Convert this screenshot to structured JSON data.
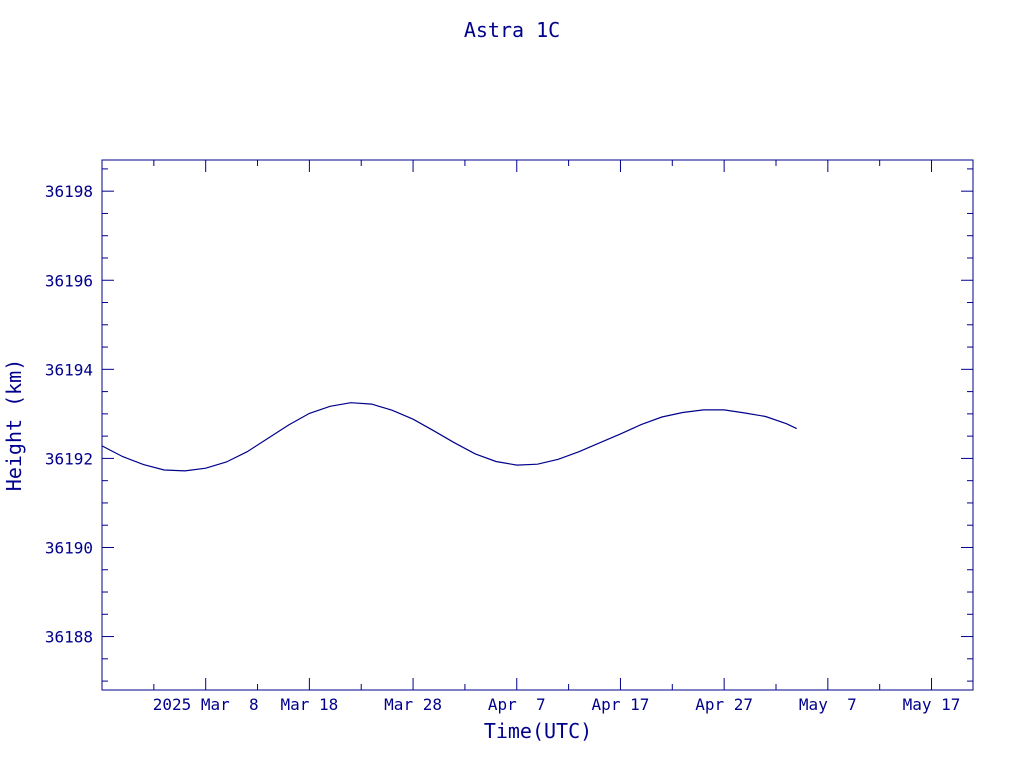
{
  "chart_data": {
    "type": "line",
    "title": "Astra 1C",
    "xlabel": "Time(UTC)",
    "ylabel": "Height (km)",
    "color": "#00008b",
    "x_tick_labels": [
      "2025 Mar  8",
      "Mar 18",
      "Mar 28",
      "Apr  7",
      "Apr 17",
      "Apr 27",
      "May  7",
      "May 17"
    ],
    "x_tick_dates": [
      "2025-03-08",
      "2025-03-18",
      "2025-03-28",
      "2025-04-07",
      "2025-04-17",
      "2025-04-27",
      "2025-05-07",
      "2025-05-17"
    ],
    "xlim": [
      "2025-02-26",
      "2025-05-21"
    ],
    "y_tick_labels": [
      "36188",
      "36190",
      "36192",
      "36194",
      "36196",
      "36198"
    ],
    "y_ticks": [
      36188,
      36190,
      36192,
      36194,
      36196,
      36198
    ],
    "ylim": [
      36186.8,
      36198.7
    ],
    "grid": false,
    "series": [
      {
        "x": [
          "2025-02-26",
          "2025-02-28",
          "2025-03-02",
          "2025-03-04",
          "2025-03-06",
          "2025-03-08",
          "2025-03-10",
          "2025-03-12",
          "2025-03-14",
          "2025-03-16",
          "2025-03-18",
          "2025-03-20",
          "2025-03-22",
          "2025-03-24",
          "2025-03-26",
          "2025-03-28",
          "2025-03-30",
          "2025-04-01",
          "2025-04-03",
          "2025-04-05",
          "2025-04-07",
          "2025-04-09",
          "2025-04-11",
          "2025-04-13",
          "2025-04-15",
          "2025-04-17",
          "2025-04-19",
          "2025-04-21",
          "2025-04-23",
          "2025-04-25",
          "2025-04-27",
          "2025-04-29",
          "2025-05-01",
          "2025-05-03",
          "2025-05-04"
        ],
        "y": [
          36192.28,
          36192.04,
          36191.86,
          36191.74,
          36191.72,
          36191.78,
          36191.92,
          36192.15,
          36192.45,
          36192.75,
          36193.01,
          36193.17,
          36193.25,
          36193.22,
          36193.08,
          36192.88,
          36192.62,
          36192.35,
          36192.1,
          36191.93,
          36191.85,
          36191.87,
          36191.98,
          36192.15,
          36192.35,
          36192.55,
          36192.76,
          36192.93,
          36193.03,
          36193.09,
          36193.09,
          36193.02,
          36192.94,
          36192.78,
          36192.67
        ]
      }
    ]
  }
}
